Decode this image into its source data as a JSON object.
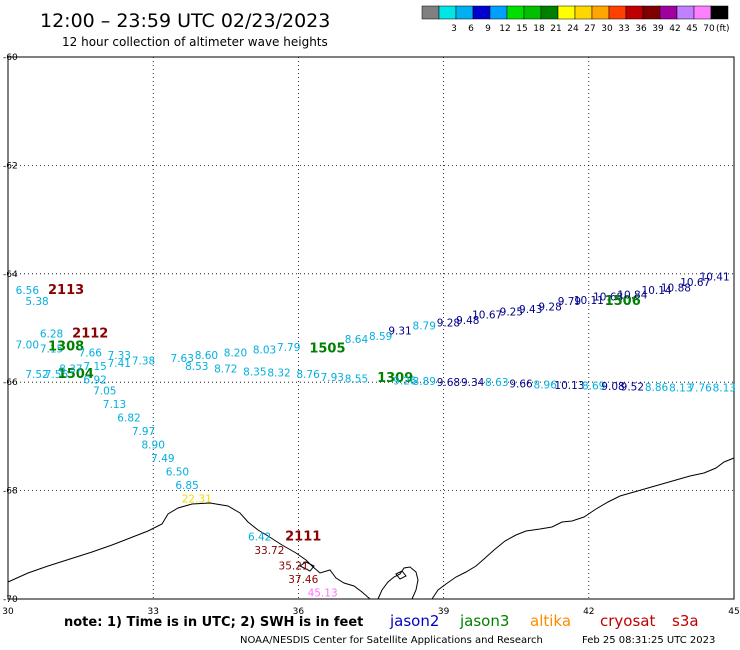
{
  "header": {
    "title": "12:00 – 23:59 UTC 02/23/2023",
    "subtitle": "12 hour collection of altimeter wave heights"
  },
  "legend": {
    "unit": "(ft)",
    "swatches": [
      {
        "color": "#808080",
        "label": ""
      },
      {
        "color": "#00e5e5",
        "label": "3"
      },
      {
        "color": "#00b0f0",
        "label": "6"
      },
      {
        "color": "#0000d0",
        "label": "9"
      },
      {
        "color": "#00a0ff",
        "label": "12"
      },
      {
        "color": "#00e000",
        "label": "15"
      },
      {
        "color": "#00c000",
        "label": "18"
      },
      {
        "color": "#008000",
        "label": "21"
      },
      {
        "color": "#ffff00",
        "label": "24"
      },
      {
        "color": "#ffd700",
        "label": "27"
      },
      {
        "color": "#ffa500",
        "label": "30"
      },
      {
        "color": "#ff4000",
        "label": "33"
      },
      {
        "color": "#c00000",
        "label": "36"
      },
      {
        "color": "#800000",
        "label": "39"
      },
      {
        "color": "#a000a0",
        "label": "42"
      },
      {
        "color": "#c080ff",
        "label": "45"
      },
      {
        "color": "#ff80ff",
        "label": "70"
      },
      {
        "color": "#000000",
        "label": ""
      }
    ]
  },
  "axes": {
    "lon_ticks": [
      "30",
      "33",
      "36",
      "39",
      "42",
      "45"
    ],
    "lat_ticks": [
      "-60",
      "-62",
      "-64",
      "-66",
      "-68",
      "-70"
    ]
  },
  "colors": {
    "jason2": "#0000c8",
    "jason3": "#008000",
    "altika": "#ff8c00",
    "cryosat": "#c00000",
    "s3a": "#c00000",
    "cyan": "#00b0e0",
    "navy": "#00008b",
    "darkred": "#8b0000",
    "yellow": "#f0e000",
    "pink": "#ff70ff",
    "green": "#008000"
  },
  "observations": [
    {
      "text": "6.56",
      "lon": 30.4,
      "lat": -64.3,
      "color": "cyan"
    },
    {
      "text": "2113",
      "lon": 31.2,
      "lat": -64.3,
      "color": "darkred",
      "size": "big"
    },
    {
      "text": "5.38",
      "lon": 30.6,
      "lat": -64.5,
      "color": "cyan"
    },
    {
      "text": "6.28",
      "lon": 30.9,
      "lat": -65.1,
      "color": "cyan"
    },
    {
      "text": "2112",
      "lon": 31.7,
      "lat": -65.1,
      "color": "darkred",
      "size": "big"
    },
    {
      "text": "7.00",
      "lon": 30.4,
      "lat": -65.3,
      "color": "cyan"
    },
    {
      "text": "7.15",
      "lon": 30.9,
      "lat": -65.38,
      "color": "cyan"
    },
    {
      "text": "1308",
      "lon": 31.2,
      "lat": -65.34,
      "color": "green",
      "size": "big"
    },
    {
      "text": "7.66",
      "lon": 31.7,
      "lat": -65.45,
      "color": "cyan"
    },
    {
      "text": "7.33",
      "lon": 32.3,
      "lat": -65.5,
      "color": "cyan"
    },
    {
      "text": "7.52",
      "lon": 30.6,
      "lat": -65.85,
      "color": "cyan"
    },
    {
      "text": "7.56",
      "lon": 31.0,
      "lat": -65.85,
      "color": "cyan"
    },
    {
      "text": "1504",
      "lon": 31.4,
      "lat": -65.85,
      "color": "green",
      "size": "big"
    },
    {
      "text": "8.37",
      "lon": 31.3,
      "lat": -65.75,
      "color": "cyan"
    },
    {
      "text": "7.15",
      "lon": 31.8,
      "lat": -65.7,
      "color": "cyan"
    },
    {
      "text": "7.41",
      "lon": 32.3,
      "lat": -65.65,
      "color": "cyan"
    },
    {
      "text": "7.38",
      "lon": 32.8,
      "lat": -65.6,
      "color": "cyan"
    },
    {
      "text": "6.92",
      "lon": 31.8,
      "lat": -65.95,
      "color": "cyan"
    },
    {
      "text": "7.05",
      "lon": 32.0,
      "lat": -66.15,
      "color": "cyan"
    },
    {
      "text": "7.13",
      "lon": 32.2,
      "lat": -66.4,
      "color": "cyan"
    },
    {
      "text": "6.82",
      "lon": 32.5,
      "lat": -66.65,
      "color": "cyan"
    },
    {
      "text": "7.97",
      "lon": 32.8,
      "lat": -66.9,
      "color": "cyan"
    },
    {
      "text": "8.90",
      "lon": 33.0,
      "lat": -67.15,
      "color": "cyan"
    },
    {
      "text": "7.49",
      "lon": 33.2,
      "lat": -67.4,
      "color": "cyan"
    },
    {
      "text": "6.50",
      "lon": 33.5,
      "lat": -67.65,
      "color": "cyan"
    },
    {
      "text": "6.85",
      "lon": 33.7,
      "lat": -67.9,
      "color": "cyan"
    },
    {
      "text": "22.31",
      "lon": 33.9,
      "lat": -68.15,
      "color": "yellow"
    },
    {
      "text": "7.63",
      "lon": 33.6,
      "lat": -65.55,
      "color": "cyan"
    },
    {
      "text": "8.53",
      "lon": 33.9,
      "lat": -65.7,
      "color": "cyan"
    },
    {
      "text": "8.60",
      "lon": 34.1,
      "lat": -65.5,
      "color": "cyan"
    },
    {
      "text": "8.72",
      "lon": 34.5,
      "lat": -65.75,
      "color": "cyan"
    },
    {
      "text": "8.20",
      "lon": 34.7,
      "lat": -65.45,
      "color": "cyan"
    },
    {
      "text": "8.35",
      "lon": 35.1,
      "lat": -65.8,
      "color": "cyan"
    },
    {
      "text": "8.03",
      "lon": 35.3,
      "lat": -65.4,
      "color": "cyan"
    },
    {
      "text": "8.32",
      "lon": 35.6,
      "lat": -65.82,
      "color": "cyan"
    },
    {
      "text": "7.79",
      "lon": 35.8,
      "lat": -65.35,
      "color": "cyan"
    },
    {
      "text": "8.76",
      "lon": 36.2,
      "lat": -65.85,
      "color": "cyan"
    },
    {
      "text": "1505",
      "lon": 36.6,
      "lat": -65.38,
      "color": "green",
      "size": "big"
    },
    {
      "text": "7.93",
      "lon": 36.7,
      "lat": -65.9,
      "color": "cyan"
    },
    {
      "text": "8.64",
      "lon": 37.2,
      "lat": -65.2,
      "color": "cyan"
    },
    {
      "text": "8.55",
      "lon": 37.2,
      "lat": -65.93,
      "color": "cyan"
    },
    {
      "text": "8.59",
      "lon": 37.7,
      "lat": -65.15,
      "color": "cyan"
    },
    {
      "text": "1309",
      "lon": 38.0,
      "lat": -65.92,
      "color": "green",
      "size": "big"
    },
    {
      "text": "9.31",
      "lon": 38.1,
      "lat": -65.05,
      "color": "navy"
    },
    {
      "text": "9.26",
      "lon": 38.2,
      "lat": -65.97,
      "color": "cyan"
    },
    {
      "text": "8.79",
      "lon": 38.6,
      "lat": -64.95,
      "color": "cyan"
    },
    {
      "text": "8.89",
      "lon": 38.6,
      "lat": -65.98,
      "color": "cyan"
    },
    {
      "text": "9.28",
      "lon": 39.1,
      "lat": -64.9,
      "color": "navy"
    },
    {
      "text": "9.68",
      "lon": 39.1,
      "lat": -66.0,
      "color": "navy"
    },
    {
      "text": "9.48",
      "lon": 39.5,
      "lat": -64.85,
      "color": "navy"
    },
    {
      "text": "9.34",
      "lon": 39.6,
      "lat": -66.0,
      "color": "navy"
    },
    {
      "text": "10.67",
      "lon": 39.9,
      "lat": -64.75,
      "color": "navy"
    },
    {
      "text": "8.63",
      "lon": 40.1,
      "lat": -66.0,
      "color": "cyan"
    },
    {
      "text": "9.25",
      "lon": 40.4,
      "lat": -64.7,
      "color": "navy"
    },
    {
      "text": "9.66",
      "lon": 40.6,
      "lat": -66.02,
      "color": "navy"
    },
    {
      "text": "9.43",
      "lon": 40.8,
      "lat": -64.65,
      "color": "navy"
    },
    {
      "text": "8.96",
      "lon": 41.1,
      "lat": -66.04,
      "color": "cyan"
    },
    {
      "text": "9.28",
      "lon": 41.2,
      "lat": -64.6,
      "color": "navy"
    },
    {
      "text": "10.13",
      "lon": 41.6,
      "lat": -66.05,
      "color": "navy"
    },
    {
      "text": "9.79",
      "lon": 41.6,
      "lat": -64.5,
      "color": "navy"
    },
    {
      "text": "10.11",
      "lon": 42.0,
      "lat": -64.48,
      "color": "navy"
    },
    {
      "text": "8.69",
      "lon": 42.1,
      "lat": -66.06,
      "color": "cyan"
    },
    {
      "text": "10.68",
      "lon": 42.4,
      "lat": -64.42,
      "color": "navy"
    },
    {
      "text": "1506",
      "lon": 42.7,
      "lat": -64.5,
      "color": "green",
      "size": "big"
    },
    {
      "text": "9.08",
      "lon": 42.5,
      "lat": -66.07,
      "color": "navy"
    },
    {
      "text": "10.84",
      "lon": 42.9,
      "lat": -64.38,
      "color": "navy"
    },
    {
      "text": "9.52",
      "lon": 42.9,
      "lat": -66.08,
      "color": "navy"
    },
    {
      "text": "10.14",
      "lon": 43.4,
      "lat": -64.3,
      "color": "navy"
    },
    {
      "text": "8.86",
      "lon": 43.4,
      "lat": -66.09,
      "color": "cyan"
    },
    {
      "text": "10.88",
      "lon": 43.8,
      "lat": -64.25,
      "color": "navy"
    },
    {
      "text": "8.13",
      "lon": 43.9,
      "lat": -66.1,
      "color": "cyan"
    },
    {
      "text": "10.67",
      "lon": 44.2,
      "lat": -64.15,
      "color": "navy"
    },
    {
      "text": "7.76",
      "lon": 44.3,
      "lat": -66.1,
      "color": "cyan"
    },
    {
      "text": "10.41",
      "lon": 44.6,
      "lat": -64.05,
      "color": "navy"
    },
    {
      "text": "8.13",
      "lon": 44.8,
      "lat": -66.1,
      "color": "cyan"
    },
    {
      "text": "6.42",
      "lon": 35.2,
      "lat": -68.85,
      "color": "cyan"
    },
    {
      "text": "2111",
      "lon": 36.1,
      "lat": -68.85,
      "color": "darkred",
      "size": "big"
    },
    {
      "text": "33.72",
      "lon": 35.4,
      "lat": -69.1,
      "color": "darkred"
    },
    {
      "text": "35.21",
      "lon": 35.9,
      "lat": -69.38,
      "color": "darkred"
    },
    {
      "text": "37.46",
      "lon": 36.1,
      "lat": -69.63,
      "color": "darkred"
    },
    {
      "text": "45.13",
      "lon": 36.5,
      "lat": -69.88,
      "color": "pink"
    }
  ],
  "footer": {
    "note": "note: 1) Time is in UTC; 2) SWH is in feet",
    "satellites": [
      {
        "label": "jason2",
        "color": "jason2"
      },
      {
        "label": "jason3",
        "color": "jason3"
      },
      {
        "label": "altika",
        "color": "altika"
      },
      {
        "label": "cryosat",
        "color": "cryosat"
      },
      {
        "label": "s3a",
        "color": "s3a"
      }
    ],
    "credit": "NOAA/NESDIS Center for Satellite Applications and Research",
    "timestamp": "Feb 25 08:31:25 UTC 2023"
  }
}
